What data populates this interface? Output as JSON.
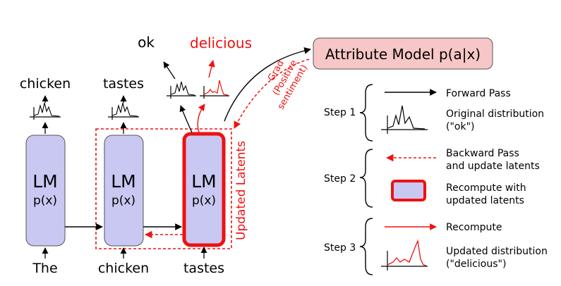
{
  "words": {
    "ok": "ok",
    "delicious": "delicious",
    "chicken_out": "chicken",
    "tastes_out": "tastes",
    "the_in": "The",
    "chicken_in": "chicken",
    "tastes_in": "tastes"
  },
  "lm": {
    "title": "LM",
    "subtitle": "p(x)"
  },
  "attribute_model": {
    "label": "Attribute Model p(a|x)"
  },
  "grad": {
    "line1": "Grad",
    "line2": "(Positive",
    "line3": "sentiment)"
  },
  "updated_latents": "Updated Latents",
  "legend": {
    "step1": "Step 1",
    "step2": "Step 2",
    "step3": "Step 3",
    "forward_pass": "Forward Pass",
    "original_dist_1": "Original distribution",
    "original_dist_2": "(\"ok\")",
    "backward_pass_1": "Backward Pass",
    "backward_pass_2": "and update latents",
    "recompute_with_1": "Recompute with",
    "recompute_with_2": "updated latents",
    "recompute": "Recompute",
    "updated_dist_1": "Updated distribution",
    "updated_dist_2": "(\"delicious\")"
  },
  "colors": {
    "lm_fill": "#c8c8f2",
    "attr_fill": "#f7c6c6",
    "red": "#ee1111",
    "black": "#000000"
  }
}
